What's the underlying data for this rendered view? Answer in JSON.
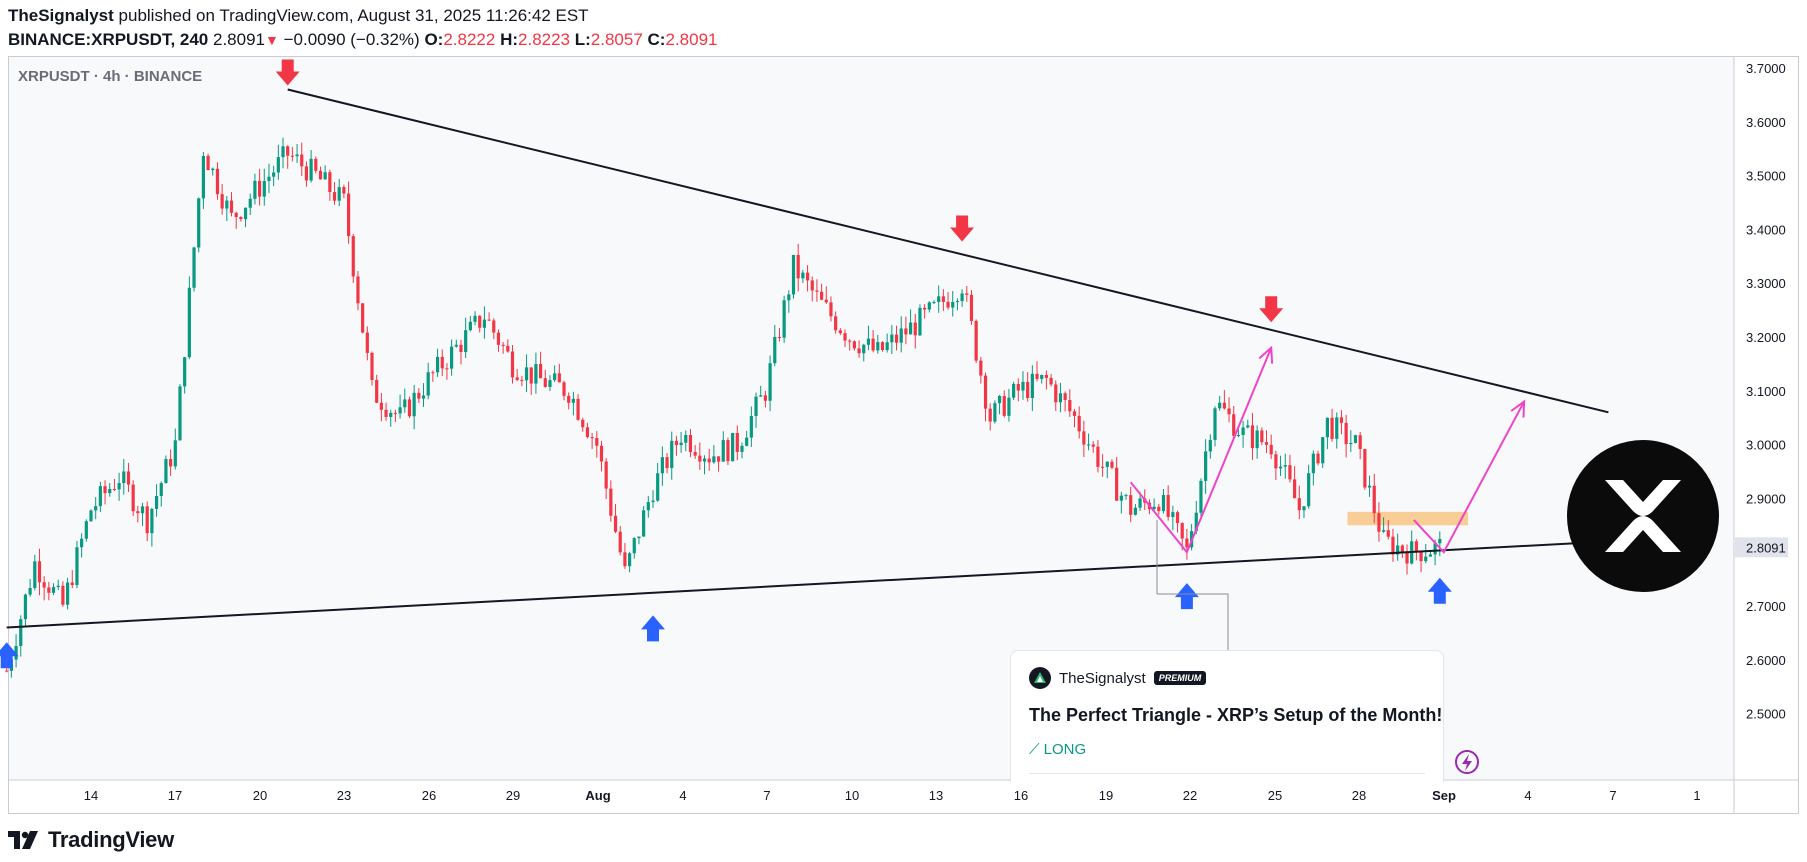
{
  "header": {
    "author": "TheSignalyst",
    "published": " published on TradingView.com, August 31, 2025 11:26:42 EST",
    "symbol_line": "BINANCE:XRPUSDT, 240",
    "last": "2.8091",
    "change": "−0.0090 (−0.32%)",
    "o_label": "O:",
    "o_value": "2.8222",
    "h_label": "H:",
    "h_value": "2.8223",
    "l_label": "L:",
    "l_value": "2.8057",
    "c_label": "C:",
    "c_value": "2.8091"
  },
  "chart_label": "XRPUSDT · 4h · BINANCE",
  "footer": {
    "brand": "TradingView",
    "logo_icon": "tradingview-logo-icon"
  },
  "card": {
    "author": "TheSignalyst",
    "badge": "PREMIUM",
    "title": "The Perfect Triangle - XRP’s Setup of the Month!",
    "direction": "LONG"
  },
  "colors": {
    "up": "#089981",
    "down": "#f23645",
    "projection": "#ee44cc",
    "zone": "#f9c784",
    "arrow_up": "#2962ff",
    "arrow_down": "#f23645"
  },
  "chart_data": {
    "type": "candlestick",
    "timeframe": "4h",
    "x_ticks": [
      "14",
      "17",
      "20",
      "23",
      "26",
      "29",
      "Aug",
      "4",
      "7",
      "10",
      "13",
      "16",
      "19",
      "22",
      "25",
      "28",
      "Sep",
      "4",
      "7",
      "1"
    ],
    "y_ticks": [
      "3.7000",
      "3.6000",
      "3.5000",
      "3.4000",
      "3.3000",
      "3.2000",
      "3.1000",
      "3.0000",
      "2.9000",
      "2.8000",
      "2.7000",
      "2.6000",
      "2.5000"
    ],
    "ylim": [
      2.45,
      3.8
    ],
    "last_price_label": "2.8091",
    "price_path": [
      {
        "date": "2025-07-11",
        "price": 2.58
      },
      {
        "date": "2025-07-12",
        "price": 2.78
      },
      {
        "date": "2025-07-13",
        "price": 2.7
      },
      {
        "date": "2025-07-14",
        "price": 2.88
      },
      {
        "date": "2025-07-15",
        "price": 2.94
      },
      {
        "date": "2025-07-16",
        "price": 2.86
      },
      {
        "date": "2025-07-17",
        "price": 3.0
      },
      {
        "date": "2025-07-18",
        "price": 3.55
      },
      {
        "date": "2025-07-19",
        "price": 3.42
      },
      {
        "date": "2025-07-20",
        "price": 3.48
      },
      {
        "date": "2025-07-21",
        "price": 3.54
      },
      {
        "date": "2025-07-22",
        "price": 3.5
      },
      {
        "date": "2025-07-23",
        "price": 3.45
      },
      {
        "date": "2025-07-24",
        "price": 3.1
      },
      {
        "date": "2025-07-25",
        "price": 3.05
      },
      {
        "date": "2025-07-26",
        "price": 3.12
      },
      {
        "date": "2025-07-27",
        "price": 3.18
      },
      {
        "date": "2025-07-28",
        "price": 3.24
      },
      {
        "date": "2025-07-29",
        "price": 3.15
      },
      {
        "date": "2025-07-30",
        "price": 3.12
      },
      {
        "date": "2025-07-31",
        "price": 3.1
      },
      {
        "date": "2025-08-01",
        "price": 3.0
      },
      {
        "date": "2025-08-02",
        "price": 2.76
      },
      {
        "date": "2025-08-03",
        "price": 2.92
      },
      {
        "date": "2025-08-04",
        "price": 3.02
      },
      {
        "date": "2025-08-05",
        "price": 2.98
      },
      {
        "date": "2025-08-06",
        "price": 3.0
      },
      {
        "date": "2025-08-07",
        "price": 3.1
      },
      {
        "date": "2025-08-08",
        "price": 3.33
      },
      {
        "date": "2025-08-09",
        "price": 3.26
      },
      {
        "date": "2025-08-10",
        "price": 3.2
      },
      {
        "date": "2025-08-11",
        "price": 3.17
      },
      {
        "date": "2025-08-12",
        "price": 3.21
      },
      {
        "date": "2025-08-13",
        "price": 3.25
      },
      {
        "date": "2025-08-14",
        "price": 3.3
      },
      {
        "date": "2025-08-15",
        "price": 3.05
      },
      {
        "date": "2025-08-16",
        "price": 3.1
      },
      {
        "date": "2025-08-17",
        "price": 3.12
      },
      {
        "date": "2025-08-18",
        "price": 3.05
      },
      {
        "date": "2025-08-19",
        "price": 2.96
      },
      {
        "date": "2025-08-20",
        "price": 2.88
      },
      {
        "date": "2025-08-21",
        "price": 2.9
      },
      {
        "date": "2025-08-22",
        "price": 2.8
      },
      {
        "date": "2025-08-23",
        "price": 3.08
      },
      {
        "date": "2025-08-24",
        "price": 3.02
      },
      {
        "date": "2025-08-25",
        "price": 3.0
      },
      {
        "date": "2025-08-26",
        "price": 2.88
      },
      {
        "date": "2025-08-27",
        "price": 3.04
      },
      {
        "date": "2025-08-28",
        "price": 3.0
      },
      {
        "date": "2025-08-29",
        "price": 2.82
      },
      {
        "date": "2025-08-30",
        "price": 2.8
      },
      {
        "date": "2025-08-31",
        "price": 2.8091
      }
    ],
    "trendlines": [
      {
        "name": "descending-resistance",
        "from": {
          "date": "2025-07-21",
          "price": 3.66
        },
        "to": {
          "date": "2025-09-06",
          "price": 3.06
        }
      },
      {
        "name": "ascending-support",
        "from": {
          "date": "2025-07-11",
          "price": 2.66
        },
        "to": {
          "date": "2025-09-06",
          "price": 2.82
        }
      }
    ],
    "projection_paths": [
      [
        {
          "date": "2025-08-20",
          "price": 2.93
        },
        {
          "date": "2025-08-22",
          "price": 2.8
        },
        {
          "date": "2025-08-25",
          "price": 3.18
        }
      ],
      [
        {
          "date": "2025-08-31",
          "price": 2.86
        },
        {
          "date": "2025-08-31",
          "price": 2.8
        },
        {
          "date": "2025-09-03",
          "price": 3.08
        }
      ]
    ],
    "resistance_zone": {
      "from": "2025-08-28",
      "to": "2025-09-02",
      "low": 2.85,
      "high": 2.875
    },
    "down_arrows": [
      {
        "date": "2025-07-21",
        "price": 3.66
      },
      {
        "date": "2025-08-14",
        "price": 3.37
      },
      {
        "date": "2025-08-25",
        "price": 3.22
      }
    ],
    "up_arrows": [
      {
        "date": "2025-07-11",
        "price": 2.64
      },
      {
        "date": "2025-08-03",
        "price": 2.69
      },
      {
        "date": "2025-08-22",
        "price": 2.75
      },
      {
        "date": "2025-08-31",
        "price": 2.76
      }
    ]
  }
}
